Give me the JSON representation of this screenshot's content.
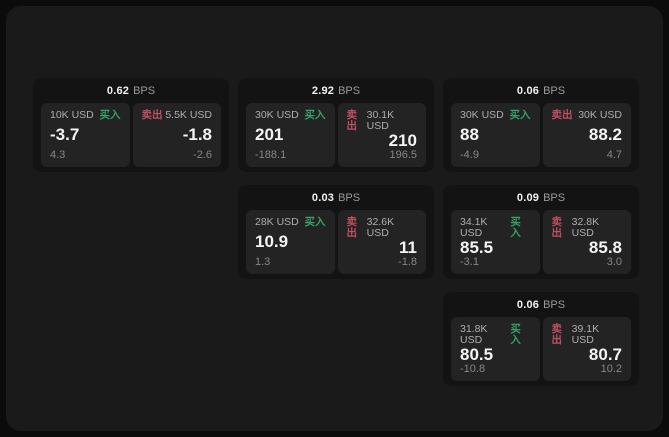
{
  "labels": {
    "buy": "买入",
    "sell": "卖出",
    "bps_unit": "BPS"
  },
  "colors": {
    "buy": "#35a263",
    "sell": "#c04f60"
  },
  "cards": [
    {
      "col": 1,
      "row": 1,
      "bps": "0.62",
      "buy": {
        "amount": "10K USD",
        "value": "-3.7",
        "sub": "4.3"
      },
      "sell": {
        "amount": "5.5K USD",
        "value": "-1.8",
        "sub": "-2.6"
      }
    },
    {
      "col": 2,
      "row": 1,
      "bps": "2.92",
      "buy": {
        "amount": "30K USD",
        "value": "201",
        "sub": "-188.1"
      },
      "sell": {
        "amount": "30.1K USD",
        "value": "210",
        "sub": "196.5"
      }
    },
    {
      "col": 3,
      "row": 1,
      "bps": "0.06",
      "buy": {
        "amount": "30K USD",
        "value": "88",
        "sub": "-4.9"
      },
      "sell": {
        "amount": "30K USD",
        "value": "88.2",
        "sub": "4.7"
      }
    },
    {
      "col": 2,
      "row": 2,
      "bps": "0.03",
      "buy": {
        "amount": "28K USD",
        "value": "10.9",
        "sub": "1.3"
      },
      "sell": {
        "amount": "32.6K USD",
        "value": "11",
        "sub": "-1.8"
      }
    },
    {
      "col": 3,
      "row": 2,
      "bps": "0.09",
      "buy": {
        "amount": "34.1K USD",
        "value": "85.5",
        "sub": "-3.1"
      },
      "sell": {
        "amount": "32.8K USD",
        "value": "85.8",
        "sub": "3.0"
      }
    },
    {
      "col": 3,
      "row": 3,
      "bps": "0.06",
      "buy": {
        "amount": "31.8K USD",
        "value": "80.5",
        "sub": "-10.8"
      },
      "sell": {
        "amount": "39.1K USD",
        "value": "80.7",
        "sub": "10.2"
      }
    }
  ]
}
